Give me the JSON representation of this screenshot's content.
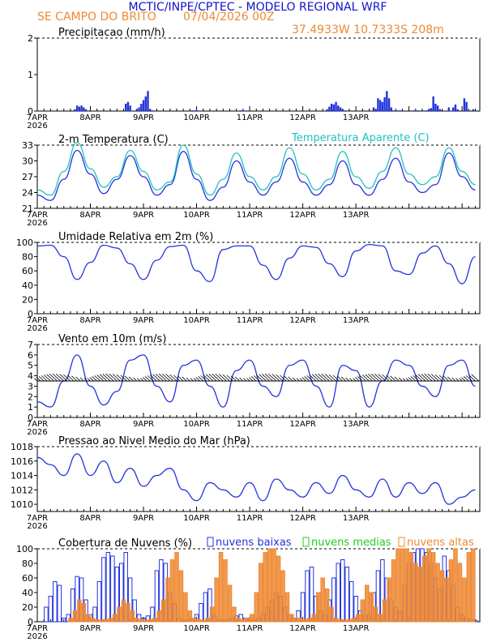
{
  "header": {
    "title": "MCTIC/INPE/CPTEC - MODELO REGIONAL WRF",
    "location": "SE CAMPO DO BRITO",
    "run": "07/04/2026 00Z",
    "coords": "37.4933W 10.7333S 208m"
  },
  "colors": {
    "blue": "#2233dd",
    "cyan": "#22c0c0",
    "orange": "#ee8833",
    "green": "#22cc22",
    "title_blue": "#1111cc",
    "black": "#000000"
  },
  "days": [
    "7APR",
    "8APR",
    "9APR",
    "10APR",
    "11APR",
    "12APR",
    "13APR"
  ],
  "year": "2026",
  "chart_data": [
    {
      "id": "precip",
      "type": "bar",
      "title": "Precipitacao (mm/h)",
      "ylim": [
        0,
        2
      ],
      "yticks": [
        0,
        1,
        2
      ],
      "x_unit": "hours since 2026-04-07 00Z",
      "series": [
        {
          "name": "precipitacao",
          "color": "#2233dd",
          "x": [
            17,
            18,
            19,
            20,
            21,
            22,
            40,
            41,
            42,
            45,
            46,
            47,
            48,
            49,
            50,
            51,
            52,
            70,
            71,
            72,
            92,
            93,
            131,
            132,
            133,
            134,
            135,
            136,
            137,
            138,
            139,
            152,
            153,
            154,
            155,
            156,
            157,
            158,
            159,
            160,
            161,
            163,
            164,
            165,
            170,
            171,
            172,
            176,
            177,
            178,
            179,
            180,
            181,
            182,
            186,
            188,
            189,
            190,
            193,
            194,
            197,
            198
          ],
          "values": [
            0.05,
            0.15,
            0.12,
            0.15,
            0.1,
            0.05,
            0.2,
            0.25,
            0.15,
            0.05,
            0.1,
            0.2,
            0.3,
            0.4,
            0.55,
            0.05,
            0.02,
            0.02,
            0.02,
            0.02,
            0.02,
            0.02,
            0.05,
            0.12,
            0.2,
            0.18,
            0.25,
            0.15,
            0.1,
            0.05,
            0.02,
            0.1,
            0.05,
            0.35,
            0.3,
            0.25,
            0.38,
            0.55,
            0.35,
            0.1,
            0.02,
            0.02,
            0.02,
            0.02,
            0.02,
            0.02,
            0.02,
            0.02,
            0.05,
            0.08,
            0.4,
            0.2,
            0.15,
            0.05,
            0.1,
            0.1,
            0.18,
            0.05,
            0.35,
            0.25,
            0.05,
            0.02
          ]
        }
      ]
    },
    {
      "id": "temp",
      "type": "line",
      "title": "2-m Temperatura (C)",
      "legend2": "Temperatura Aparente (C)",
      "ylim": [
        21,
        33
      ],
      "yticks": [
        21,
        24,
        27,
        30,
        33
      ],
      "x_unit": "hours since 2026-04-07 00Z",
      "series": [
        {
          "name": "Temperatura",
          "color": "#2233dd",
          "x": [
            0,
            6,
            12,
            18,
            24,
            30,
            36,
            42,
            48,
            54,
            60,
            66,
            72,
            78,
            84,
            90,
            96,
            102,
            108,
            114,
            120,
            126,
            132,
            138,
            144,
            150,
            156,
            162,
            168,
            174,
            180,
            186,
            192,
            198
          ],
          "values": [
            23.5,
            22.5,
            26.5,
            32,
            27.5,
            23.8,
            26.5,
            31,
            27,
            23.5,
            25.5,
            31.8,
            26.5,
            22.5,
            25,
            30,
            26,
            23.5,
            26,
            30.5,
            26,
            23.5,
            25.5,
            30,
            25.5,
            23.5,
            26.5,
            30.5,
            26,
            24,
            25.5,
            31.5,
            27,
            24.5
          ]
        },
        {
          "name": "Temperatura Aparente",
          "color": "#22c0c0",
          "x": [
            0,
            6,
            12,
            18,
            24,
            30,
            36,
            42,
            48,
            54,
            60,
            66,
            72,
            78,
            84,
            90,
            96,
            102,
            108,
            114,
            120,
            126,
            132,
            138,
            144,
            150,
            156,
            162,
            168,
            174,
            180,
            186,
            192,
            198
          ],
          "values": [
            24.5,
            23.5,
            28,
            33.5,
            28.5,
            25,
            27,
            32,
            28,
            24.5,
            26,
            33,
            27.5,
            23.5,
            26.5,
            31.5,
            27,
            24.5,
            27,
            32.5,
            27.5,
            24.5,
            26.5,
            31.8,
            27,
            24.8,
            28,
            32.5,
            27.5,
            25.5,
            27,
            32.5,
            28,
            25.5
          ]
        }
      ]
    },
    {
      "id": "rh",
      "type": "line",
      "title": "Umidade Relativa em 2m (%)",
      "ylim": [
        0,
        100
      ],
      "yticks": [
        0,
        20,
        40,
        60,
        80,
        100
      ],
      "x_unit": "hours since 2026-04-07 00Z",
      "series": [
        {
          "name": "Umidade",
          "color": "#2233dd",
          "x": [
            0,
            6,
            12,
            18,
            24,
            30,
            36,
            42,
            48,
            54,
            60,
            66,
            72,
            78,
            84,
            90,
            96,
            102,
            108,
            114,
            120,
            126,
            132,
            138,
            144,
            150,
            156,
            162,
            168,
            174,
            180,
            186,
            192,
            198
          ],
          "values": [
            95,
            96,
            80,
            48,
            72,
            96,
            92,
            70,
            48,
            75,
            94,
            96,
            60,
            45,
            90,
            95,
            95,
            68,
            48,
            78,
            95,
            93,
            70,
            52,
            88,
            97,
            95,
            60,
            55,
            85,
            95,
            70,
            42,
            80
          ]
        }
      ]
    },
    {
      "id": "wind",
      "type": "line",
      "title": "Vento em 10m (m/s)",
      "ylim": [
        0,
        7
      ],
      "yticks": [
        0,
        1,
        2,
        3,
        4,
        5,
        6,
        7
      ],
      "x_unit": "hours since 2026-04-07 00Z",
      "series": [
        {
          "name": "Vento",
          "color": "#2233dd",
          "x": [
            0,
            6,
            12,
            18,
            24,
            30,
            36,
            42,
            48,
            54,
            60,
            66,
            72,
            78,
            84,
            90,
            96,
            102,
            108,
            114,
            120,
            126,
            132,
            138,
            144,
            150,
            156,
            162,
            168,
            174,
            180,
            186,
            192,
            198
          ],
          "values": [
            1.5,
            1.0,
            3.5,
            6.0,
            3.0,
            1.2,
            2.5,
            5.5,
            6.0,
            3.0,
            1.5,
            5.0,
            5.5,
            3.0,
            1.0,
            4.5,
            5.5,
            3.0,
            2.0,
            5.0,
            5.5,
            3.0,
            1.0,
            5.0,
            4.5,
            1.0,
            3.5,
            5.5,
            5.0,
            3.0,
            2.0,
            5.0,
            5.5,
            3.0
          ]
        }
      ]
    },
    {
      "id": "pressure",
      "type": "line",
      "title": "Pressao ao Nivel Medio do Mar (hPa)",
      "ylim": [
        1009,
        1018
      ],
      "yticks": [
        1010,
        1012,
        1014,
        1016,
        1018
      ],
      "x_unit": "hours since 2026-04-07 00Z",
      "series": [
        {
          "name": "Pressao",
          "color": "#2233dd",
          "x": [
            0,
            6,
            12,
            18,
            24,
            30,
            36,
            42,
            48,
            54,
            60,
            66,
            72,
            78,
            84,
            90,
            96,
            102,
            108,
            114,
            120,
            126,
            132,
            138,
            144,
            150,
            156,
            162,
            168,
            174,
            180,
            186,
            192,
            198
          ],
          "values": [
            1016.5,
            1015.5,
            1014,
            1017,
            1014,
            1016,
            1013,
            1015,
            1012.5,
            1014,
            1015,
            1012,
            1010.5,
            1013,
            1012,
            1011,
            1013,
            1010.5,
            1013.5,
            1012,
            1011,
            1013,
            1011.5,
            1014,
            1012,
            1011,
            1013.5,
            1011,
            1013,
            1011.5,
            1013,
            1010,
            1011,
            1012
          ]
        }
      ]
    },
    {
      "id": "clouds",
      "type": "bar",
      "title": "Cobertura de Nuvens (%)",
      "ylim": [
        0,
        100
      ],
      "yticks": [
        0,
        20,
        40,
        60,
        80,
        100
      ],
      "legend": [
        "nuvens baixas",
        "nuvens medias",
        "nuvens altas"
      ],
      "x_unit": "hours since 2026-04-07 00Z",
      "series": [
        {
          "name": "nuvens baixas",
          "color": "#2233dd",
          "x": [
            4,
            6,
            8,
            10,
            12,
            14,
            16,
            18,
            20,
            22,
            24,
            26,
            28,
            30,
            32,
            34,
            36,
            38,
            40,
            42,
            44,
            46,
            48,
            50,
            52,
            54,
            56,
            58,
            60,
            62,
            64,
            66,
            68,
            70,
            72,
            74,
            76,
            78,
            80,
            82,
            84,
            86,
            88,
            90,
            92,
            94,
            96,
            98,
            100,
            102,
            104,
            106,
            108,
            110,
            112,
            114,
            116,
            118,
            120,
            122,
            124,
            126,
            128,
            130,
            132,
            134,
            136,
            138,
            140,
            142,
            144,
            146,
            148,
            150,
            152,
            154,
            156,
            158,
            160,
            162,
            164,
            166,
            168,
            170,
            172,
            174,
            176,
            178,
            180,
            182,
            184,
            186,
            188,
            190,
            192,
            194,
            196,
            198
          ],
          "values": [
            20,
            35,
            55,
            50,
            5,
            10,
            45,
            62,
            60,
            30,
            10,
            20,
            55,
            88,
            95,
            90,
            75,
            80,
            95,
            60,
            30,
            10,
            5,
            8,
            20,
            70,
            85,
            80,
            40,
            25,
            5,
            3,
            2,
            5,
            10,
            25,
            40,
            45,
            8,
            3,
            2,
            3,
            5,
            8,
            10,
            5,
            3,
            2,
            5,
            10,
            20,
            30,
            40,
            35,
            20,
            10,
            5,
            15,
            40,
            70,
            75,
            35,
            15,
            10,
            30,
            60,
            80,
            85,
            75,
            55,
            35,
            15,
            8,
            10,
            40,
            70,
            85,
            60,
            30,
            20,
            15,
            50,
            80,
            95,
            100,
            100,
            95,
            80,
            60,
            45,
            90,
            70,
            50,
            20,
            10,
            5,
            3,
            2
          ]
        },
        {
          "name": "nuvens altas",
          "color": "#ee8833",
          "x": [
            15,
            17,
            19,
            21,
            23,
            25,
            27,
            29,
            31,
            33,
            35,
            37,
            39,
            41,
            43,
            45,
            47,
            49,
            51,
            53,
            55,
            57,
            59,
            61,
            63,
            65,
            67,
            69,
            71,
            73,
            75,
            77,
            79,
            81,
            83,
            85,
            87,
            89,
            91,
            93,
            95,
            97,
            99,
            101,
            103,
            105,
            107,
            109,
            111,
            113,
            115,
            117,
            119,
            121,
            123,
            125,
            127,
            129,
            131,
            133,
            135,
            137,
            139,
            141,
            143,
            145,
            147,
            149,
            151,
            153,
            155,
            157,
            159,
            161,
            163,
            165,
            167,
            169,
            171,
            173,
            175,
            177,
            179,
            181,
            183,
            185,
            187,
            189,
            191,
            193,
            195,
            197
          ],
          "values": [
            5,
            15,
            30,
            25,
            10,
            5,
            3,
            2,
            3,
            5,
            10,
            20,
            30,
            25,
            15,
            5,
            3,
            2,
            3,
            5,
            15,
            30,
            60,
            85,
            95,
            70,
            40,
            15,
            5,
            3,
            2,
            5,
            20,
            60,
            95,
            85,
            50,
            20,
            5,
            3,
            5,
            10,
            40,
            80,
            95,
            100,
            100,
            90,
            70,
            40,
            10,
            5,
            5,
            3,
            5,
            10,
            40,
            60,
            45,
            20,
            5,
            3,
            2,
            3,
            5,
            10,
            30,
            50,
            40,
            20,
            10,
            30,
            60,
            85,
            100,
            100,
            100,
            95,
            80,
            75,
            90,
            100,
            95,
            80,
            70,
            60,
            85,
            100,
            80,
            60,
            95,
            100
          ]
        }
      ]
    }
  ]
}
